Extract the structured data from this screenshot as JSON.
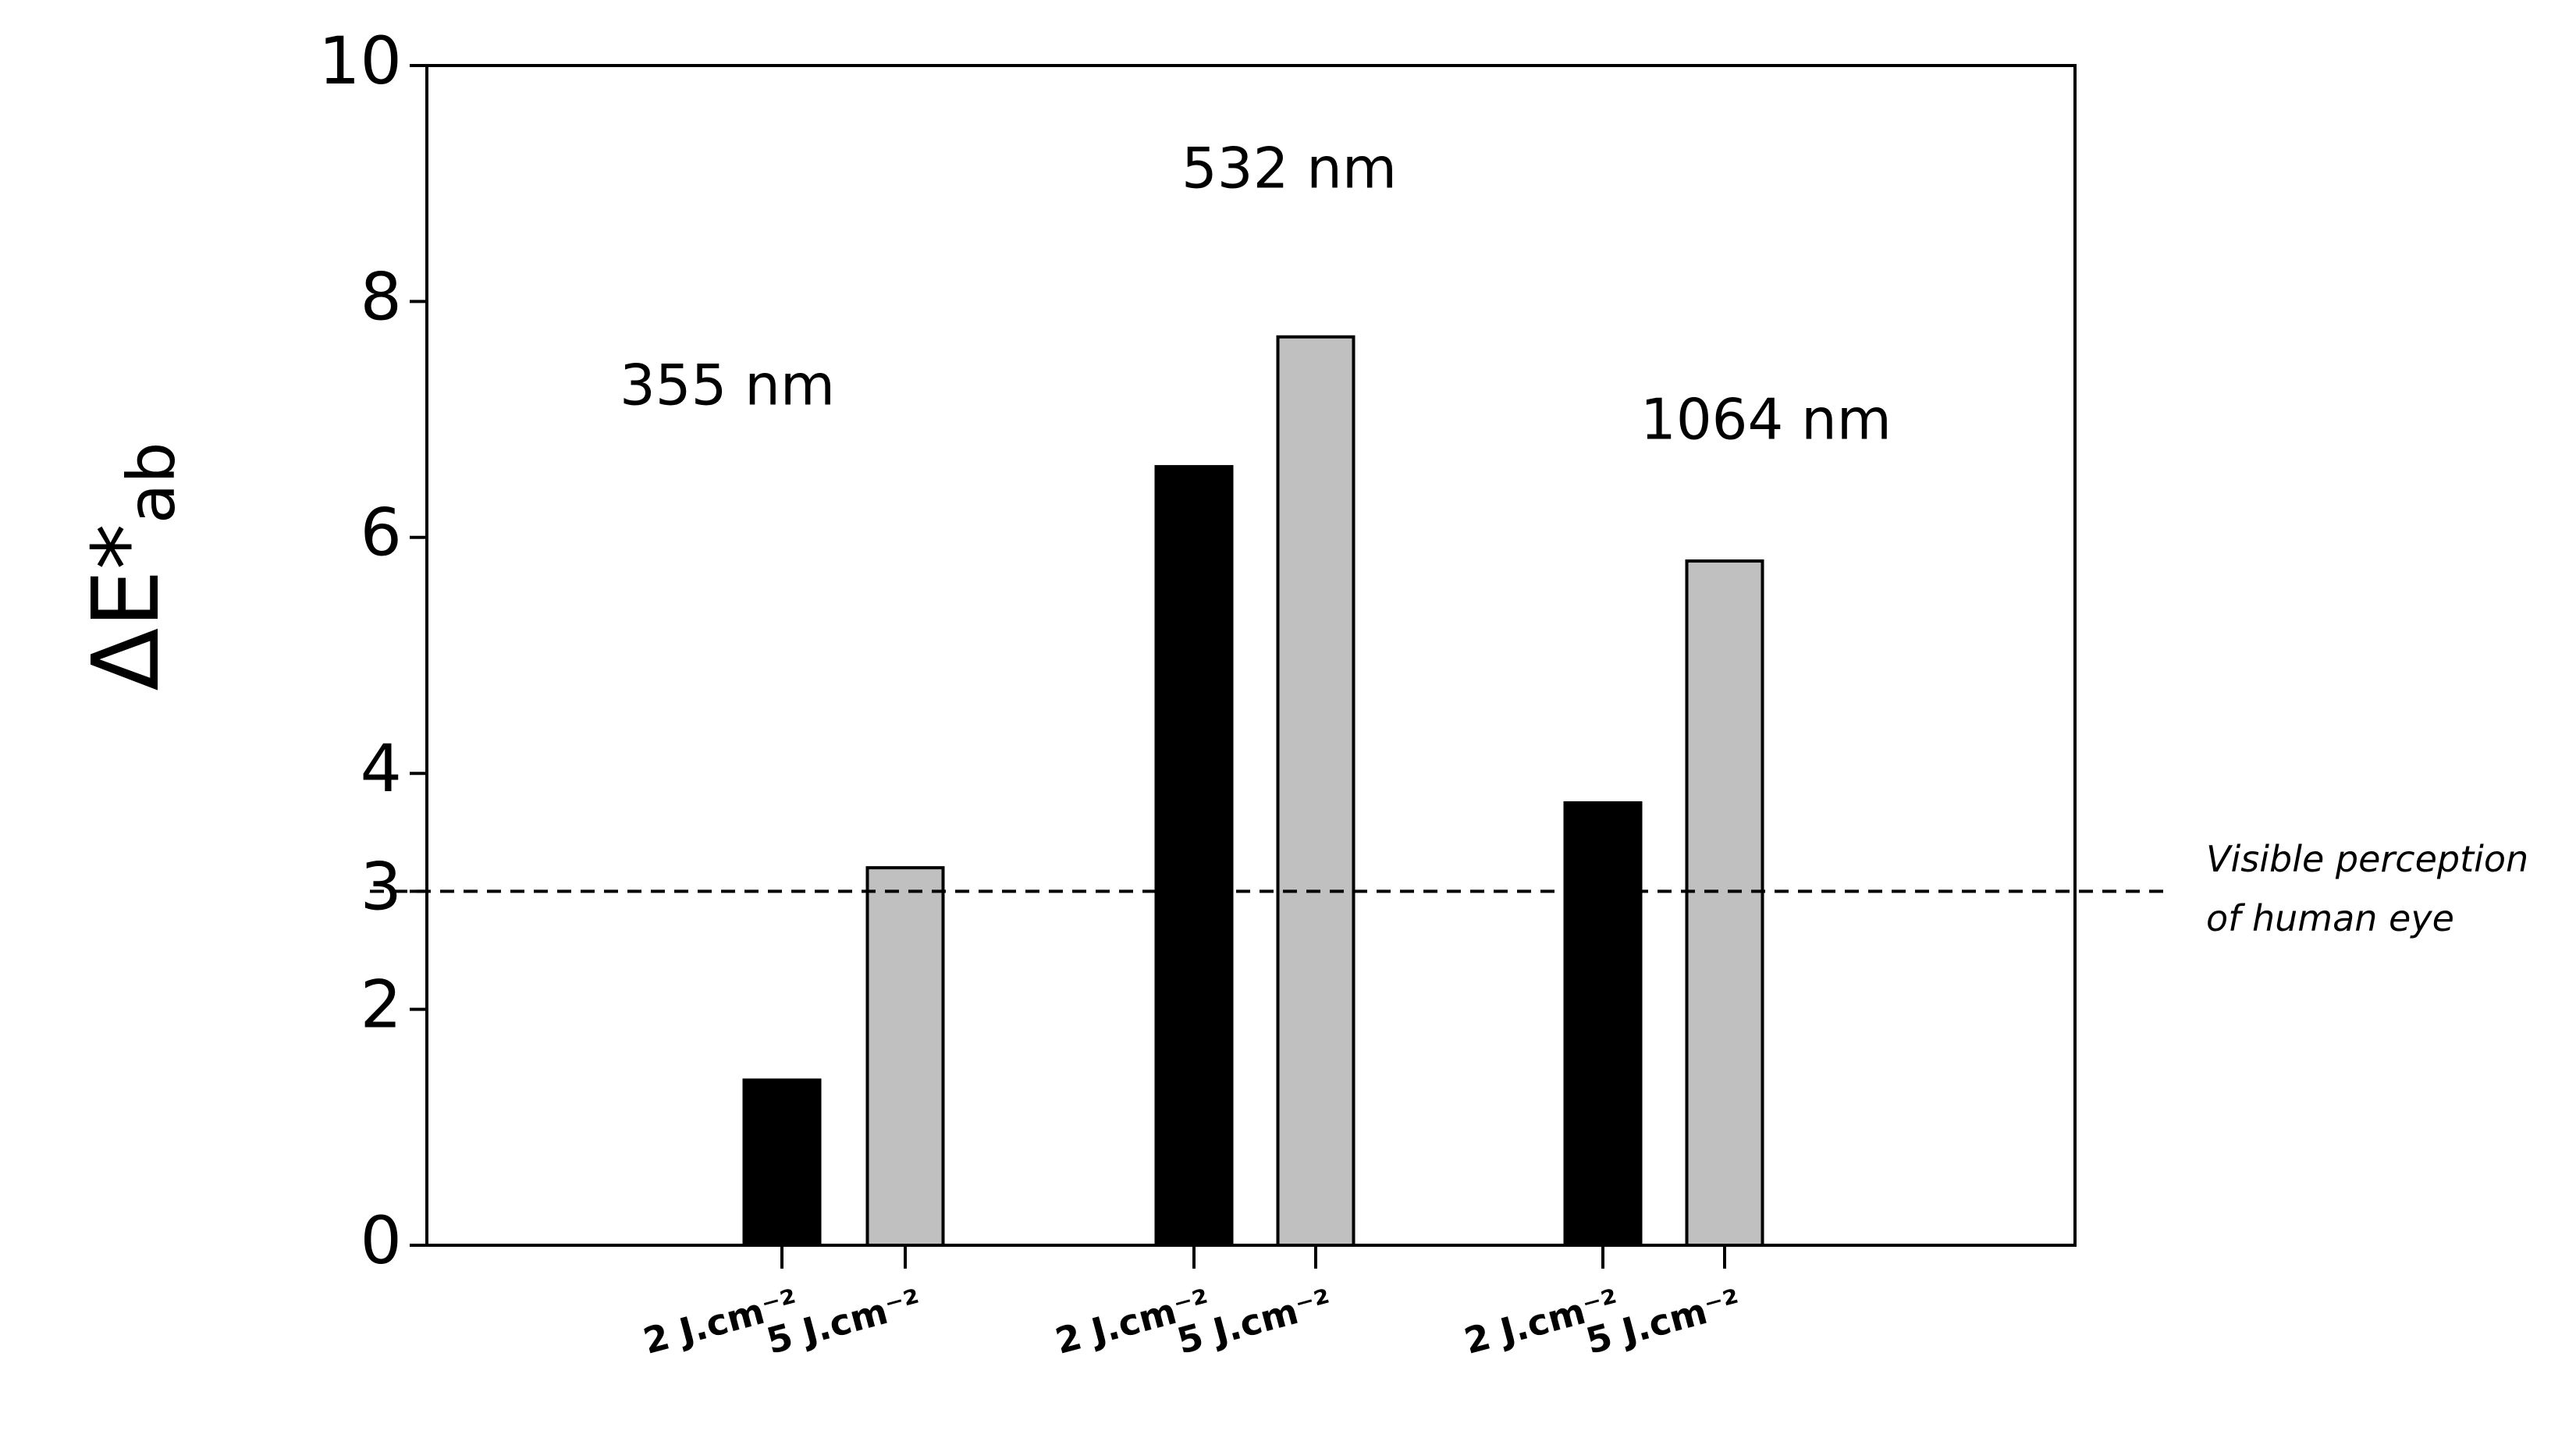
{
  "chart_data": {
    "type": "bar",
    "y_label": {
      "text": "ΔE*",
      "sub": "ab"
    },
    "categories": [
      "2 J.cm⁻²",
      "5 J.cm⁻²",
      "2 J.cm⁻²",
      "5 J.cm⁻²",
      "2 J.cm⁻²",
      "5 J.cm⁻²"
    ],
    "values": [
      1.4,
      3.2,
      6.6,
      7.7,
      3.75,
      5.8
    ],
    "colors": [
      "#000000",
      "#c0c0c0",
      "#000000",
      "#c0c0c0",
      "#000000",
      "#c0c0c0"
    ],
    "groups": [
      "355 nm",
      "532 nm",
      "1064 nm"
    ],
    "ylim": [
      0,
      10
    ],
    "yticks": [
      0,
      2,
      3,
      4,
      6,
      8,
      10
    ],
    "reference_line": {
      "value": 3,
      "label": [
        "Visible perception",
        "of human eye"
      ]
    }
  }
}
